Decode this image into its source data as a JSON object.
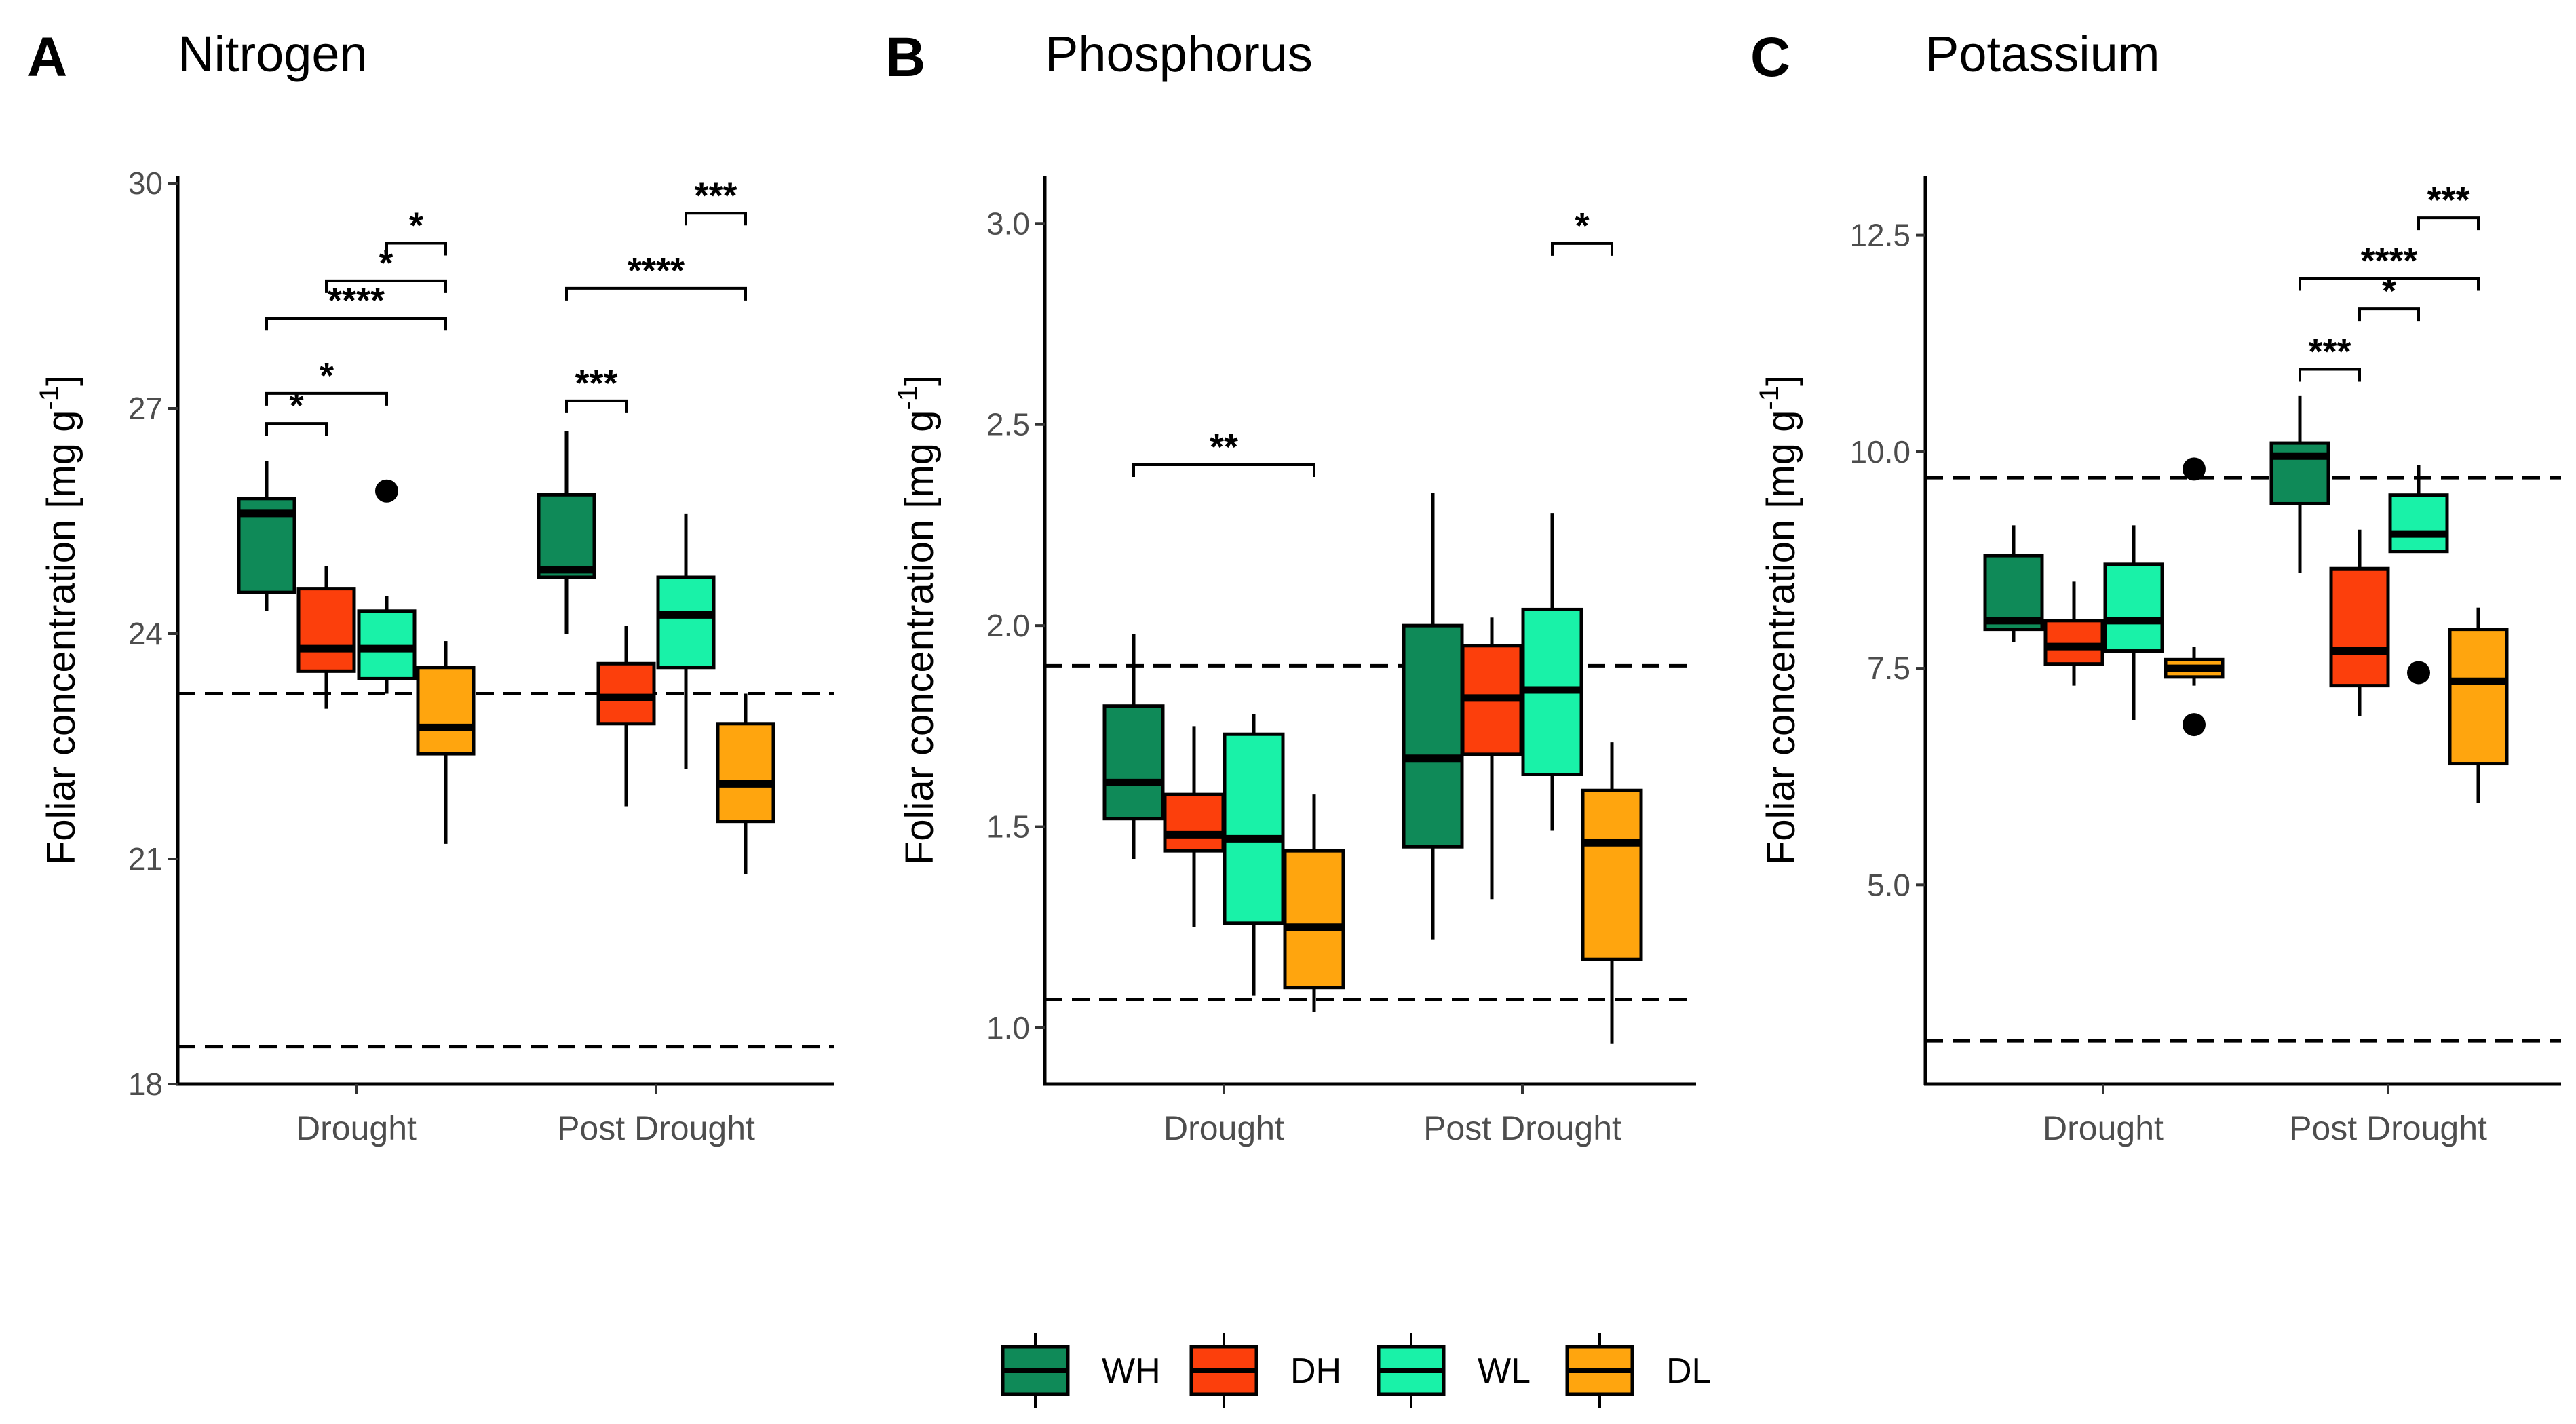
{
  "chart_data": [
    {
      "type": "box",
      "panel": "A",
      "title": "Nitrogen",
      "ylabel": "Foliar concentration [mg g",
      "ylabel_sup": "-1",
      "ylabel_close": "]",
      "ylim": [
        18,
        30
      ],
      "yticks": [
        18,
        21,
        24,
        27,
        30
      ],
      "ytick_labels": [
        "18",
        "21",
        "24",
        "27",
        "30"
      ],
      "categories": [
        "Drought",
        "Post Drought"
      ],
      "ref_lines": [
        23.2,
        18.5
      ],
      "groups": [
        {
          "category": "Drought",
          "series": "WH",
          "min": 24.3,
          "q1": 24.55,
          "median": 25.6,
          "q3": 25.8,
          "max": 26.3,
          "outliers": []
        },
        {
          "category": "Drought",
          "series": "DH",
          "min": 23.0,
          "q1": 23.5,
          "median": 23.8,
          "q3": 24.6,
          "max": 24.9,
          "outliers": []
        },
        {
          "category": "Drought",
          "series": "WL",
          "min": 23.2,
          "q1": 23.4,
          "median": 23.8,
          "q3": 24.3,
          "max": 24.5,
          "outliers": [
            25.9
          ]
        },
        {
          "category": "Drought",
          "series": "DL",
          "min": 21.2,
          "q1": 22.4,
          "median": 22.75,
          "q3": 23.55,
          "max": 23.9,
          "outliers": []
        },
        {
          "category": "Post Drought",
          "series": "WH",
          "min": 24.0,
          "q1": 24.75,
          "median": 24.85,
          "q3": 25.85,
          "max": 26.7,
          "outliers": []
        },
        {
          "category": "Post Drought",
          "series": "DH",
          "min": 21.7,
          "q1": 22.8,
          "median": 23.15,
          "q3": 23.6,
          "max": 24.1,
          "outliers": []
        },
        {
          "category": "Post Drought",
          "series": "WL",
          "min": 22.2,
          "q1": 23.55,
          "median": 24.25,
          "q3": 24.75,
          "max": 25.6,
          "outliers": []
        },
        {
          "category": "Post Drought",
          "series": "DL",
          "min": 20.8,
          "q1": 21.5,
          "median": 22.0,
          "q3": 22.8,
          "max": 23.2,
          "outliers": []
        }
      ],
      "significance": [
        {
          "from": 0,
          "to": 1,
          "y": 26.8,
          "label": "*"
        },
        {
          "from": 0,
          "to": 2,
          "y": 27.2,
          "label": "*"
        },
        {
          "from": 0,
          "to": 3,
          "y": 28.2,
          "label": "****"
        },
        {
          "from": 1,
          "to": 3,
          "y": 28.7,
          "label": "*"
        },
        {
          "from": 2,
          "to": 3,
          "y": 29.2,
          "label": "*"
        },
        {
          "from": 4,
          "to": 5,
          "y": 27.1,
          "label": "***"
        },
        {
          "from": 4,
          "to": 7,
          "y": 28.6,
          "label": "****"
        },
        {
          "from": 6,
          "to": 7,
          "y": 29.6,
          "label": "***"
        }
      ]
    },
    {
      "type": "box",
      "panel": "B",
      "title": "Phosphorus",
      "ylabel": "Foliar concentration [mg g",
      "ylabel_sup": "-1",
      "ylabel_close": "]",
      "ylim": [
        0.86,
        3.1
      ],
      "yticks": [
        1.0,
        1.5,
        2.0,
        2.5,
        3.0
      ],
      "ytick_labels": [
        "1.0",
        "1.5",
        "2.0",
        "2.5",
        "3.0"
      ],
      "categories": [
        "Drought",
        "Post Drought"
      ],
      "ref_lines": [
        1.9,
        1.07
      ],
      "groups": [
        {
          "category": "Drought",
          "series": "WH",
          "min": 1.42,
          "q1": 1.52,
          "median": 1.61,
          "q3": 1.8,
          "max": 1.98,
          "outliers": []
        },
        {
          "category": "Drought",
          "series": "DH",
          "min": 1.25,
          "q1": 1.44,
          "median": 1.48,
          "q3": 1.58,
          "max": 1.75,
          "outliers": []
        },
        {
          "category": "Drought",
          "series": "WL",
          "min": 1.08,
          "q1": 1.26,
          "median": 1.47,
          "q3": 1.73,
          "max": 1.78,
          "outliers": []
        },
        {
          "category": "Drought",
          "series": "DL",
          "min": 1.04,
          "q1": 1.1,
          "median": 1.25,
          "q3": 1.44,
          "max": 1.58,
          "outliers": []
        },
        {
          "category": "Post Drought",
          "series": "WH",
          "min": 1.22,
          "q1": 1.45,
          "median": 1.67,
          "q3": 2.0,
          "max": 2.33,
          "outliers": []
        },
        {
          "category": "Post Drought",
          "series": "DH",
          "min": 1.32,
          "q1": 1.68,
          "median": 1.82,
          "q3": 1.95,
          "max": 2.02,
          "outliers": []
        },
        {
          "category": "Post Drought",
          "series": "WL",
          "min": 1.49,
          "q1": 1.63,
          "median": 1.84,
          "q3": 2.04,
          "max": 2.28,
          "outliers": []
        },
        {
          "category": "Post Drought",
          "series": "DL",
          "min": 0.96,
          "q1": 1.17,
          "median": 1.46,
          "q3": 1.59,
          "max": 1.71,
          "outliers": []
        }
      ],
      "significance": [
        {
          "from": 0,
          "to": 3,
          "y": 2.4,
          "label": "**"
        },
        {
          "from": 6,
          "to": 7,
          "y": 2.95,
          "label": "*"
        }
      ]
    },
    {
      "type": "box",
      "panel": "C",
      "title": "Potassium",
      "ylabel": "Foliar concentration [mg g",
      "ylabel_sup": "-1",
      "ylabel_close": "]",
      "ylim": [
        2.7,
        13.1
      ],
      "yticks": [
        5.0,
        7.5,
        10.0,
        12.5
      ],
      "ytick_labels": [
        "5.0",
        "7.5",
        "10.0",
        "12.5"
      ],
      "categories": [
        "Drought",
        "Post Drought"
      ],
      "ref_lines": [
        9.7,
        3.2
      ],
      "groups": [
        {
          "category": "Drought",
          "series": "WH",
          "min": 7.8,
          "q1": 7.95,
          "median": 8.05,
          "q3": 8.8,
          "max": 9.15,
          "outliers": []
        },
        {
          "category": "Drought",
          "series": "DH",
          "min": 7.3,
          "q1": 7.55,
          "median": 7.75,
          "q3": 8.05,
          "max": 8.5,
          "outliers": []
        },
        {
          "category": "Drought",
          "series": "WL",
          "min": 6.9,
          "q1": 7.7,
          "median": 8.05,
          "q3": 8.7,
          "max": 9.15,
          "outliers": []
        },
        {
          "category": "Drought",
          "series": "DL",
          "min": 7.3,
          "q1": 7.4,
          "median": 7.5,
          "q3": 7.6,
          "max": 7.75,
          "outliers": [
            9.8,
            6.85
          ]
        },
        {
          "category": "Post Drought",
          "series": "WH",
          "min": 8.6,
          "q1": 9.4,
          "median": 9.95,
          "q3": 10.1,
          "max": 10.65,
          "outliers": []
        },
        {
          "category": "Post Drought",
          "series": "DH",
          "min": 6.95,
          "q1": 7.3,
          "median": 7.7,
          "q3": 8.65,
          "max": 9.1,
          "outliers": []
        },
        {
          "category": "Post Drought",
          "series": "WL",
          "min": 8.85,
          "q1": 8.85,
          "median": 9.05,
          "q3": 9.5,
          "max": 9.85,
          "outliers": [
            7.45
          ]
        },
        {
          "category": "Post Drought",
          "series": "DL",
          "min": 5.95,
          "q1": 6.4,
          "median": 7.35,
          "q3": 7.95,
          "max": 8.2,
          "outliers": []
        }
      ],
      "significance": [
        {
          "from": 4,
          "to": 5,
          "y": 10.95,
          "label": "***"
        },
        {
          "from": 5,
          "to": 6,
          "y": 11.65,
          "label": "*"
        },
        {
          "from": 4,
          "to": 7,
          "y": 12.0,
          "label": "****"
        },
        {
          "from": 6,
          "to": 7,
          "y": 12.7,
          "label": "***"
        }
      ]
    }
  ],
  "legend": [
    {
      "name": "WH",
      "color": "#0f8a58"
    },
    {
      "name": "DH",
      "color": "#fc3f0c"
    },
    {
      "name": "WL",
      "color": "#19f2a8"
    },
    {
      "name": "DL",
      "color": "#ffa50e"
    }
  ]
}
